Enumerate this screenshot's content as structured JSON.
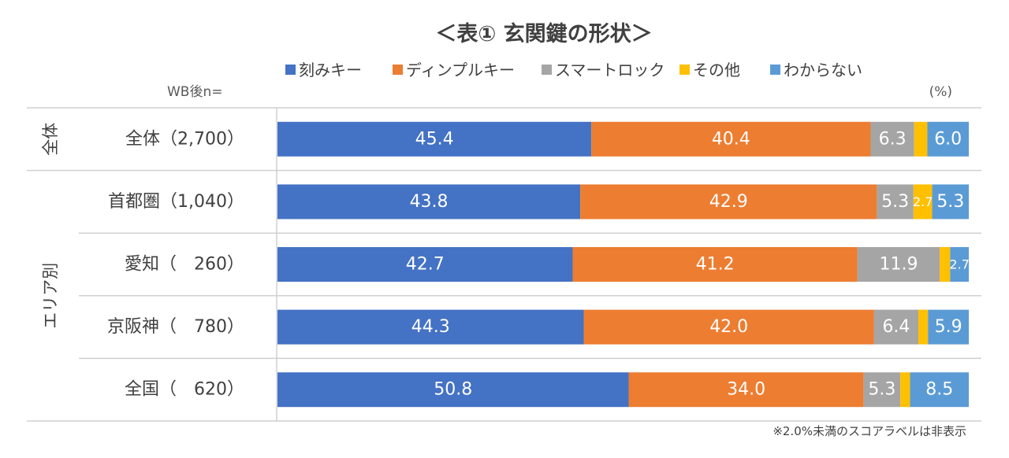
{
  "chart_data": {
    "type": "bar",
    "orientation": "horizontal",
    "stacked": true,
    "normalized": true,
    "title": "＜表① 玄関鍵の形状＞",
    "n_label": "WB後n=",
    "unit_label": "(%)",
    "footnote": "※2.0%未満のスコアラベルは非表示",
    "xlim": [
      0,
      100
    ],
    "groups": [
      {
        "name": "全体",
        "rows": [
          0,
          0
        ]
      },
      {
        "name": "エリア別",
        "rows": [
          1,
          4
        ]
      }
    ],
    "categories": [
      "全体（2,700）",
      "首都圏（1,040）",
      "愛知（　260）",
      "京阪神（　780）",
      "全国（　620）"
    ],
    "series": [
      {
        "name": "刻みキー",
        "color": "#4472C4",
        "values": [
          45.4,
          43.8,
          42.7,
          44.3,
          50.8
        ]
      },
      {
        "name": "ディンプルキー",
        "color": "#ED7D31",
        "values": [
          40.4,
          42.9,
          41.2,
          42.0,
          34.0
        ]
      },
      {
        "name": "スマートロック",
        "color": "#A5A5A5",
        "values": [
          6.3,
          5.3,
          11.9,
          6.4,
          5.3
        ]
      },
      {
        "name": "その他",
        "color": "#FFC000",
        "values": [
          1.9,
          2.7,
          1.5,
          1.4,
          1.4
        ]
      },
      {
        "name": "わからない",
        "color": "#5B9BD5",
        "values": [
          6.0,
          5.3,
          2.7,
          5.9,
          8.5
        ]
      }
    ],
    "label_threshold": 2.0,
    "grid": false,
    "legend_position": "top"
  }
}
